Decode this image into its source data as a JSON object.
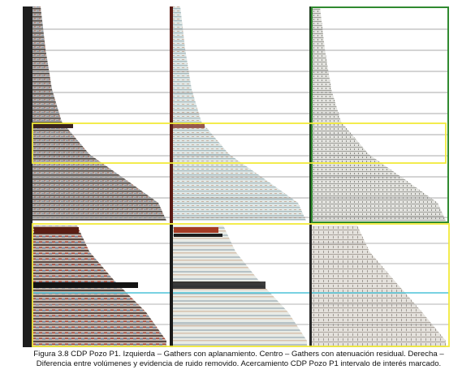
{
  "caption": "Figura 3.8 CDP Pozo P1.  Izquierda – Gathers con aplanamiento. Centro – Gathers con atenuación residual. Derecha – Diferencia entre volúmenes y evidencia de ruido removido. Acercamiento CDP Pozo P1 intervalo de interés marcado."
}
